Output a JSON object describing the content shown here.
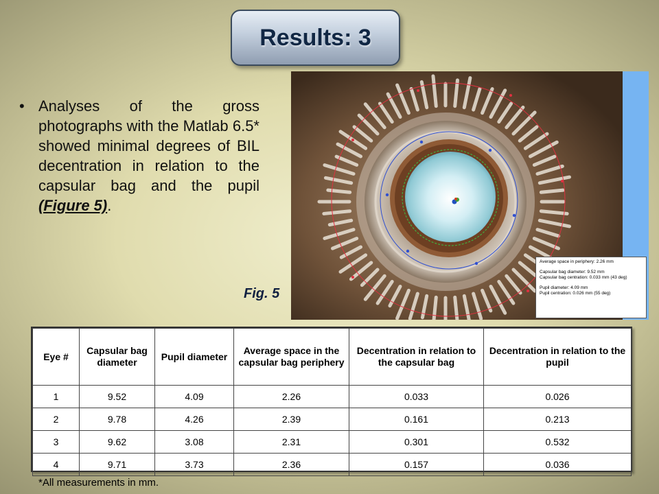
{
  "title": "Results: 3",
  "bullet": {
    "text": "Analyses of the gross photographs with the Matlab 6.5* showed minimal degrees of BIL decentration in relation to the capsular bag and the pupil ",
    "figure_ref": "(Figure 5)",
    "end": "."
  },
  "figure": {
    "label": "Fig. 5",
    "overlay": {
      "line1": "Average space in periphery: 2.26 mm",
      "line2": "Capsular bag diameter: 9.52 mm",
      "line3": "Capsular bag centration: 0.033 mm (43 deg)",
      "line4": "Pupil diameter: 4.09 mm",
      "line5": "Pupil centration: 0.026 mm (55 deg)"
    }
  },
  "table": {
    "headers": [
      "Eye #",
      "Capsular bag diameter",
      "Pupil diameter",
      "Average space in the capsular bag periphery",
      "Decentration in relation to the capsular bag",
      "Decentration in relation to the pupil"
    ],
    "rows": [
      [
        "1",
        "9.52",
        "4.09",
        "2.26",
        "0.033",
        "0.026"
      ],
      [
        "2",
        "9.78",
        "4.26",
        "2.39",
        "0.161",
        "0.213"
      ],
      [
        "3",
        "9.62",
        "3.08",
        "2.31",
        "0.301",
        "0.532"
      ],
      [
        "4",
        "9.71",
        "3.73",
        "2.36",
        "0.157",
        "0.036"
      ]
    ]
  },
  "footnote": "*All measurements in mm.",
  "colors": {
    "title_text": "#112744",
    "photo_side_panel": "#76b4f2",
    "overlay_circle": "#e03040",
    "overlay_points": "#3050d0"
  }
}
